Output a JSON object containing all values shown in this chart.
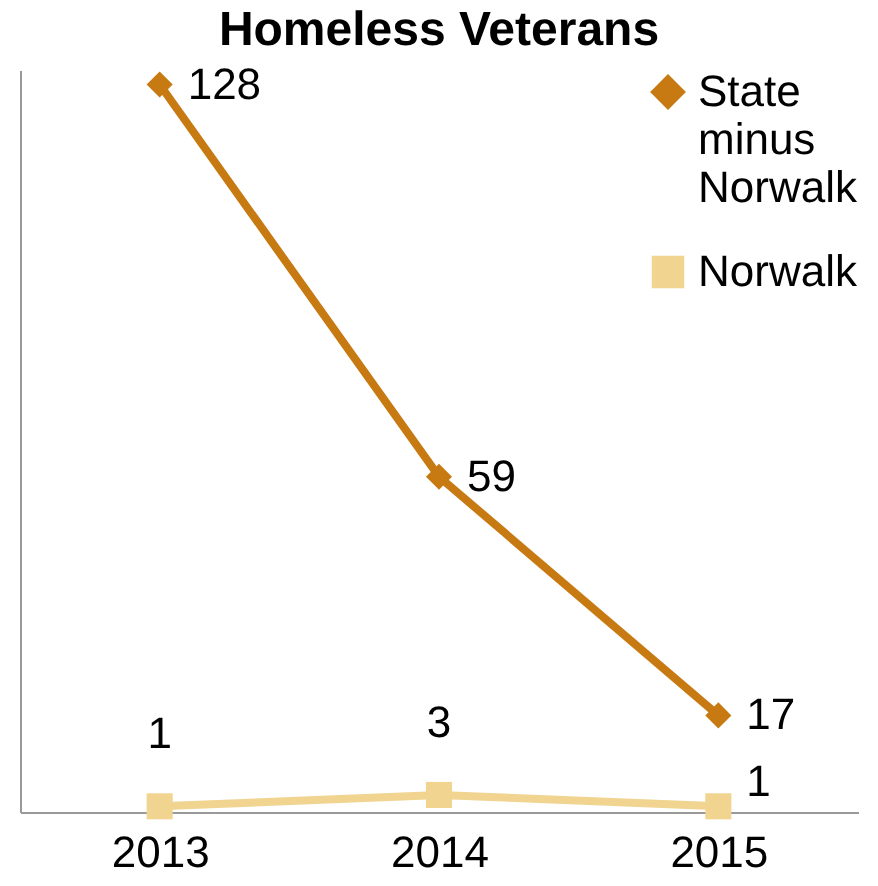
{
  "chart_data": {
    "type": "line",
    "title": "Homeless Veterans",
    "categories": [
      "2013",
      "2014",
      "2015"
    ],
    "series": [
      {
        "name": "State minus Norwalk",
        "color": "#c87a12",
        "marker": "diamond",
        "values": [
          128,
          59,
          17
        ]
      },
      {
        "name": "Norwalk",
        "color": "#f0d490",
        "marker": "square",
        "values": [
          1,
          3,
          1
        ]
      }
    ],
    "data_labels": true,
    "legend": "top right",
    "grid": false,
    "tick_labels": "x"
  }
}
